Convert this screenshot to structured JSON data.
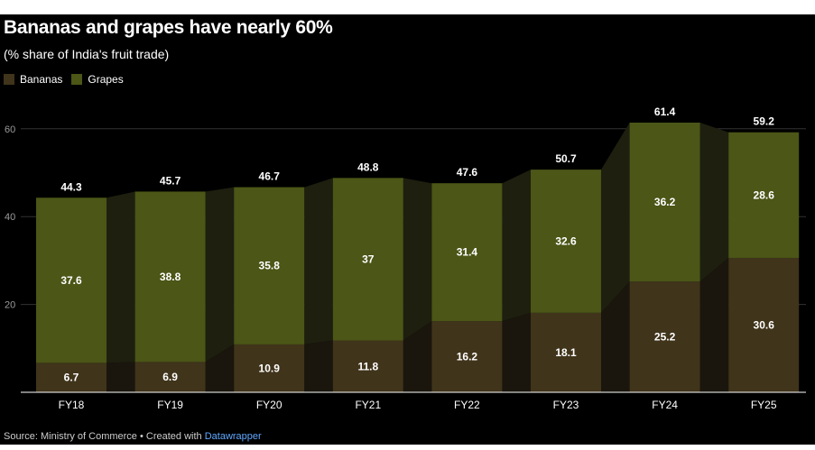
{
  "title": "Bananas and grapes have nearly 60%",
  "subtitle": "(% share of India's fruit trade)",
  "legend": [
    {
      "label": "Bananas",
      "color": "#40341b"
    },
    {
      "label": "Grapes",
      "color": "#4b5617"
    }
  ],
  "footer": {
    "source": "Source: Ministry of Commerce • Created with ",
    "credit": "Datawrapper"
  },
  "chart_data": {
    "type": "bar",
    "stacked": true,
    "categories": [
      "FY18",
      "FY19",
      "FY20",
      "FY21",
      "FY22",
      "FY23",
      "FY24",
      "FY25"
    ],
    "series": [
      {
        "name": "Bananas",
        "values": [
          6.7,
          6.9,
          10.9,
          11.8,
          16.2,
          18.1,
          25.2,
          30.6
        ],
        "labels": [
          "6.7",
          "6.9",
          "10.9",
          "11.8",
          "16.2",
          "18.1",
          "25.2",
          "30.6"
        ]
      },
      {
        "name": "Grapes",
        "values": [
          37.6,
          38.8,
          35.8,
          37,
          31.4,
          32.6,
          36.2,
          28.6
        ],
        "labels": [
          "37.6",
          "38.8",
          "35.8",
          "37",
          "31.4",
          "32.6",
          "36.2",
          "28.6"
        ]
      }
    ],
    "totals": [
      "44.3",
      "45.7",
      "46.7",
      "48.8",
      "47.6",
      "50.7",
      "61.4",
      "59.2"
    ],
    "yticks": [
      20,
      40,
      60
    ],
    "ylim": [
      0,
      68
    ],
    "xlabel": "",
    "ylabel": ""
  }
}
